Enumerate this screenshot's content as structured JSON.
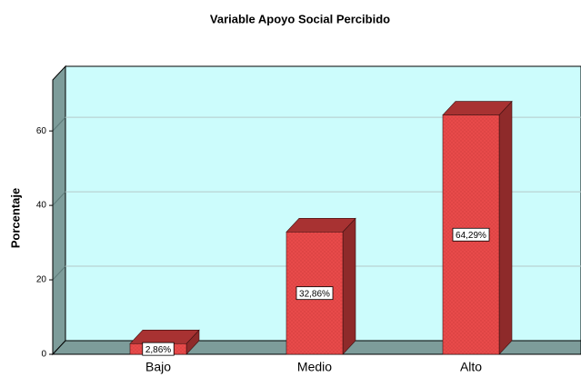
{
  "chart_data": {
    "type": "bar3d",
    "title": "Variable Apoyo Social Percibido",
    "y_label": "Porcentaje",
    "categories": [
      "Bajo",
      "Medio",
      "Alto"
    ],
    "values": [
      2.86,
      32.86,
      64.29
    ],
    "value_labels": [
      "2,86%",
      "32,86%",
      "64,29%"
    ],
    "color": "#e84a4a",
    "ylim": [
      0,
      73.7
    ],
    "yticks": [
      0,
      20,
      40,
      60
    ],
    "grid": true
  }
}
